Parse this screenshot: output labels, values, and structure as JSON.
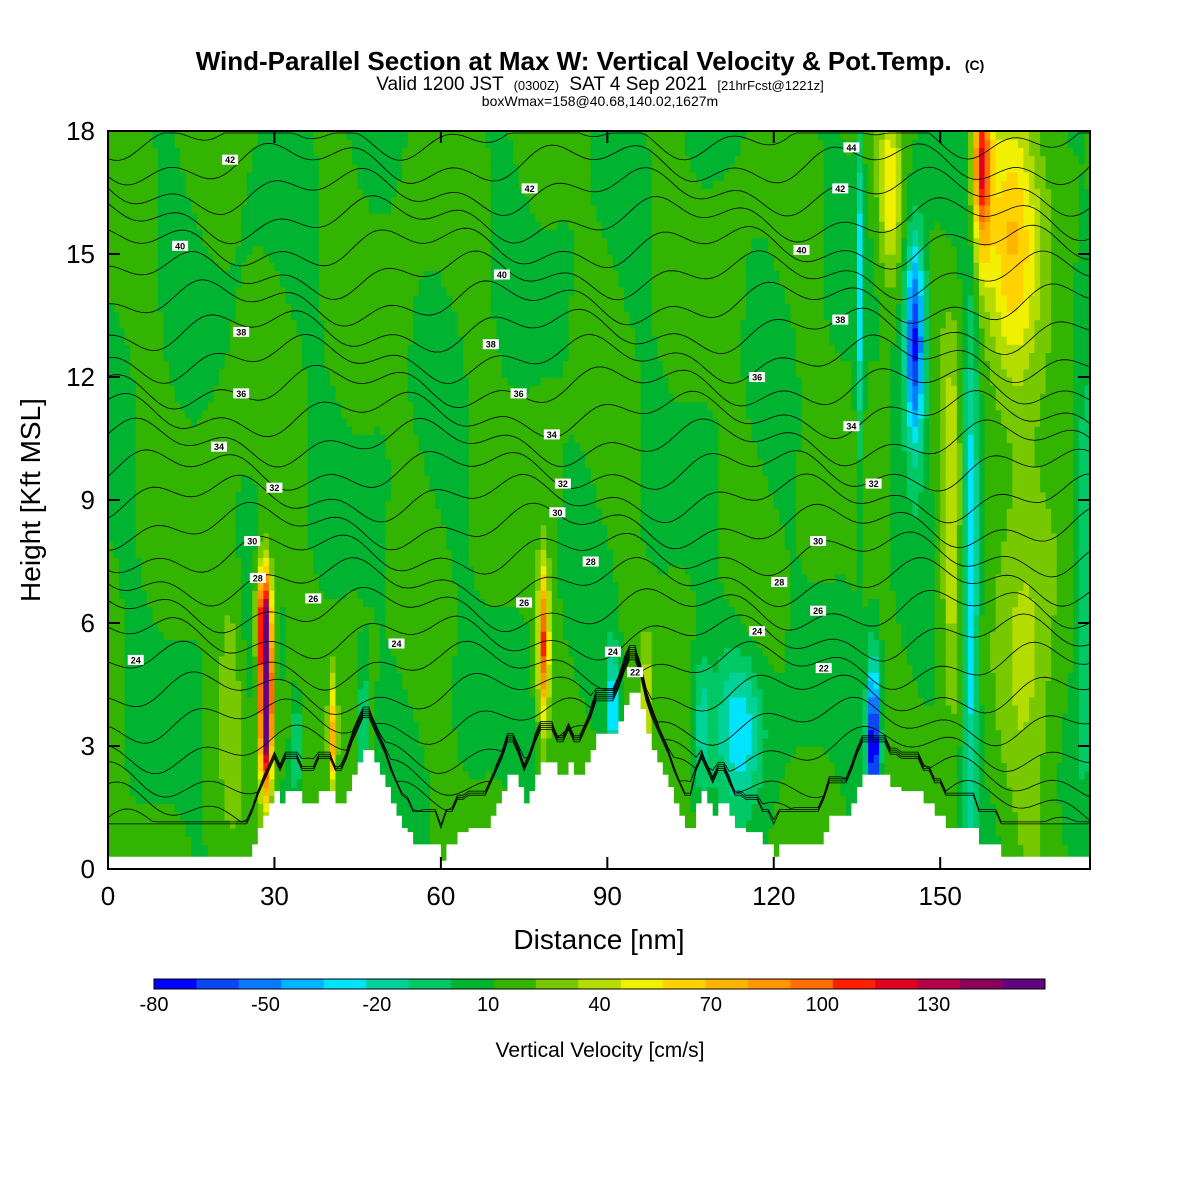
{
  "title": {
    "main": "Wind-Parallel Section at Max W: Vertical Velocity & Pot.Temp.",
    "main_unit": "(C)",
    "valid_prefix": "Valid 1200 JST",
    "valid_utc": "(0300Z)",
    "valid_suffix": "SAT 4 Sep 2021",
    "forecast": "[21hrFcst@1221z]",
    "boxwmax": "boxWmax=158@40.68,140.02,1627m"
  },
  "chart_data": {
    "type": "heatmap",
    "xlabel": "Distance [nm]",
    "ylabel": "Height [Kft MSL]",
    "xlim": [
      0,
      177
    ],
    "ylim": [
      0,
      18
    ],
    "xticks": [
      0,
      30,
      60,
      90,
      120,
      150
    ],
    "xtick_labels": [
      "0",
      "30",
      "60",
      "90",
      "120",
      "150"
    ],
    "yticks": [
      0,
      3,
      6,
      9,
      12,
      15,
      18
    ],
    "ytick_labels": [
      "0",
      "3",
      "6",
      "9",
      "12",
      "15",
      "18"
    ],
    "background_field": "Vertical Velocity [cm/s]",
    "colorbar": {
      "title": "Vertical Velocity [cm/s]",
      "min": -80,
      "max": 150,
      "step": 10,
      "tick_values": [
        -80,
        -50,
        -20,
        10,
        40,
        70,
        100,
        130
      ],
      "tick_labels": [
        "-80",
        "-50",
        "-20",
        "10",
        "40",
        "70",
        "100",
        "130"
      ],
      "colors": [
        "#0000ff",
        "#0a46f4",
        "#0a78ff",
        "#00b4ff",
        "#00e4ff",
        "#00d29a",
        "#00c864",
        "#00b432",
        "#32b400",
        "#78c800",
        "#b4dc00",
        "#f0f000",
        "#ffd200",
        "#ffb400",
        "#ff9600",
        "#ff6e00",
        "#ff1e00",
        "#e1001e",
        "#b40046",
        "#8c005a",
        "#640082"
      ]
    },
    "vertical_velocity_features": [
      {
        "x": 28.5,
        "y": 4.2,
        "w": 161,
        "sx": 0.8,
        "sy": 1.5
      },
      {
        "x": 28.0,
        "y": 6.3,
        "w": 70,
        "sx": 0.9,
        "sy": 0.9
      },
      {
        "x": 40.5,
        "y": 3.2,
        "w": 50,
        "sx": 0.5,
        "sy": 1.0
      },
      {
        "x": 78.5,
        "y": 5.5,
        "w": 80,
        "sx": 0.7,
        "sy": 1.3
      },
      {
        "x": 97.0,
        "y": 4.0,
        "w": 30,
        "sx": 0.6,
        "sy": 1.2
      },
      {
        "x": 91.0,
        "y": 4.0,
        "w": -45,
        "sx": 0.8,
        "sy": 1.0
      },
      {
        "x": 46.0,
        "y": 3.5,
        "w": -35,
        "sx": 0.5,
        "sy": 1.0
      },
      {
        "x": 34.0,
        "y": 3.0,
        "w": -30,
        "sx": 0.6,
        "sy": 0.8
      },
      {
        "x": 138.0,
        "y": 3.0,
        "w": -90,
        "sx": 0.8,
        "sy": 1.4
      },
      {
        "x": 145.5,
        "y": 12.8,
        "w": -75,
        "sx": 1.3,
        "sy": 1.8
      },
      {
        "x": 135.5,
        "y": 14.0,
        "w": -35,
        "sx": 0.5,
        "sy": 3.0
      },
      {
        "x": 155.5,
        "y": 7.0,
        "w": -40,
        "sx": 1.0,
        "sy": 5.0
      },
      {
        "x": 157.5,
        "y": 17.2,
        "w": 85,
        "sx": 1.2,
        "sy": 1.6
      },
      {
        "x": 163.0,
        "y": 15.5,
        "w": 45,
        "sx": 3.5,
        "sy": 2.5
      },
      {
        "x": 141.0,
        "y": 16.5,
        "w": 40,
        "sx": 1.5,
        "sy": 1.5
      },
      {
        "x": 152.0,
        "y": 8.5,
        "w": 30,
        "sx": 1.2,
        "sy": 3.0
      },
      {
        "x": 166.0,
        "y": 6.0,
        "w": 20,
        "sx": 4.0,
        "sy": 4.0
      },
      {
        "x": 114.0,
        "y": 3.5,
        "w": -35,
        "sx": 3.0,
        "sy": 1.3
      },
      {
        "x": 107.0,
        "y": 3.5,
        "w": -25,
        "sx": 1.2,
        "sy": 1.2
      },
      {
        "x": 176.0,
        "y": 7.0,
        "w": -30,
        "sx": 1.2,
        "sy": 3.0
      },
      {
        "x": 22.0,
        "y": 4.5,
        "w": 15,
        "sx": 1.5,
        "sy": 2.0
      }
    ],
    "terrain_profile_kft": [
      0.3,
      0.3,
      0.3,
      0.3,
      0.3,
      0.3,
      0.3,
      0.3,
      0.3,
      0.3,
      0.3,
      0.3,
      0.3,
      0.3,
      0.3,
      0.3,
      0.3,
      0.3,
      0.3,
      0.3,
      0.3,
      0.3,
      0.3,
      0.3,
      0.3,
      0.3,
      0.6,
      1.0,
      1.3,
      1.6,
      1.9,
      1.6,
      1.9,
      1.9,
      1.9,
      1.6,
      1.6,
      1.6,
      1.9,
      1.9,
      1.9,
      1.6,
      1.6,
      1.9,
      2.3,
      2.6,
      2.9,
      2.9,
      2.6,
      2.3,
      2.0,
      1.6,
      1.3,
      1.0,
      0.9,
      0.6,
      0.6,
      0.6,
      0.6,
      0.6,
      0.2,
      0.6,
      0.6,
      0.9,
      0.9,
      1.0,
      1.0,
      1.0,
      1.0,
      1.3,
      1.6,
      1.9,
      2.3,
      2.3,
      2.0,
      1.6,
      1.9,
      2.3,
      2.6,
      2.6,
      2.6,
      2.3,
      2.3,
      2.6,
      2.3,
      2.3,
      2.6,
      2.9,
      3.3,
      3.3,
      3.3,
      3.3,
      3.6,
      4.0,
      4.3,
      4.3,
      3.9,
      3.3,
      2.9,
      2.6,
      2.3,
      2.0,
      1.6,
      1.3,
      1.0,
      1.0,
      1.6,
      1.9,
      1.6,
      1.3,
      1.6,
      1.6,
      1.3,
      1.0,
      1.0,
      0.9,
      0.9,
      0.9,
      0.6,
      0.6,
      0.3,
      0.6,
      0.6,
      0.6,
      0.6,
      0.6,
      0.6,
      0.6,
      0.6,
      0.9,
      1.3,
      1.3,
      1.3,
      1.3,
      1.6,
      2.0,
      2.3,
      2.3,
      2.3,
      2.3,
      2.3,
      2.0,
      2.0,
      1.9,
      1.9,
      1.9,
      1.9,
      1.6,
      1.6,
      1.3,
      1.3,
      1.0,
      1.0,
      1.0,
      1.0,
      1.0,
      1.0,
      0.6,
      0.6,
      0.6,
      0.6,
      0.3,
      0.3,
      0.3,
      0.3,
      0.3,
      0.3,
      0.3,
      0.3,
      0.3,
      0.3,
      0.3,
      0.3,
      0.3,
      0.3,
      0.3,
      0.3,
      0.3,
      0.3
    ],
    "potential_temperature_contours": {
      "unit": "C",
      "levels": [
        20,
        21,
        22,
        23,
        24,
        25,
        26,
        27,
        28,
        29,
        30,
        31,
        32,
        33,
        34,
        35,
        36,
        37,
        38,
        39,
        40,
        41,
        42,
        43,
        44,
        45,
        46
      ],
      "labeled_levels": [
        {
          "value": "24",
          "x": 5,
          "y": 5.1
        },
        {
          "value": "26",
          "x": 37,
          "y": 6.6
        },
        {
          "value": "24",
          "x": 52,
          "y": 5.5
        },
        {
          "value": "26",
          "x": 75,
          "y": 6.5
        },
        {
          "value": "28",
          "x": 27,
          "y": 7.1
        },
        {
          "value": "28",
          "x": 87,
          "y": 7.5
        },
        {
          "value": "28",
          "x": 121,
          "y": 7.0
        },
        {
          "value": "26",
          "x": 128,
          "y": 6.3
        },
        {
          "value": "24",
          "x": 117,
          "y": 5.8
        },
        {
          "value": "22",
          "x": 129,
          "y": 4.9
        },
        {
          "value": "24",
          "x": 91,
          "y": 5.3
        },
        {
          "value": "22",
          "x": 95,
          "y": 4.8
        },
        {
          "value": "30",
          "x": 26,
          "y": 8.0
        },
        {
          "value": "30",
          "x": 81,
          "y": 8.7
        },
        {
          "value": "30",
          "x": 128,
          "y": 8.0
        },
        {
          "value": "32",
          "x": 30,
          "y": 9.3
        },
        {
          "value": "32",
          "x": 82,
          "y": 9.4
        },
        {
          "value": "32",
          "x": 138,
          "y": 9.4
        },
        {
          "value": "34",
          "x": 20,
          "y": 10.3
        },
        {
          "value": "34",
          "x": 80,
          "y": 10.6
        },
        {
          "value": "34",
          "x": 134,
          "y": 10.8
        },
        {
          "value": "36",
          "x": 24,
          "y": 11.6
        },
        {
          "value": "36",
          "x": 74,
          "y": 11.6
        },
        {
          "value": "36",
          "x": 117,
          "y": 12.0
        },
        {
          "value": "38",
          "x": 24,
          "y": 13.1
        },
        {
          "value": "38",
          "x": 69,
          "y": 12.8
        },
        {
          "value": "38",
          "x": 132,
          "y": 13.4
        },
        {
          "value": "40",
          "x": 13,
          "y": 15.2
        },
        {
          "value": "40",
          "x": 71,
          "y": 14.5
        },
        {
          "value": "40",
          "x": 125,
          "y": 15.1
        },
        {
          "value": "42",
          "x": 22,
          "y": 17.3
        },
        {
          "value": "42",
          "x": 76,
          "y": 16.6
        },
        {
          "value": "42",
          "x": 132,
          "y": 16.6
        },
        {
          "value": "44",
          "x": 134,
          "y": 17.6
        }
      ]
    }
  }
}
